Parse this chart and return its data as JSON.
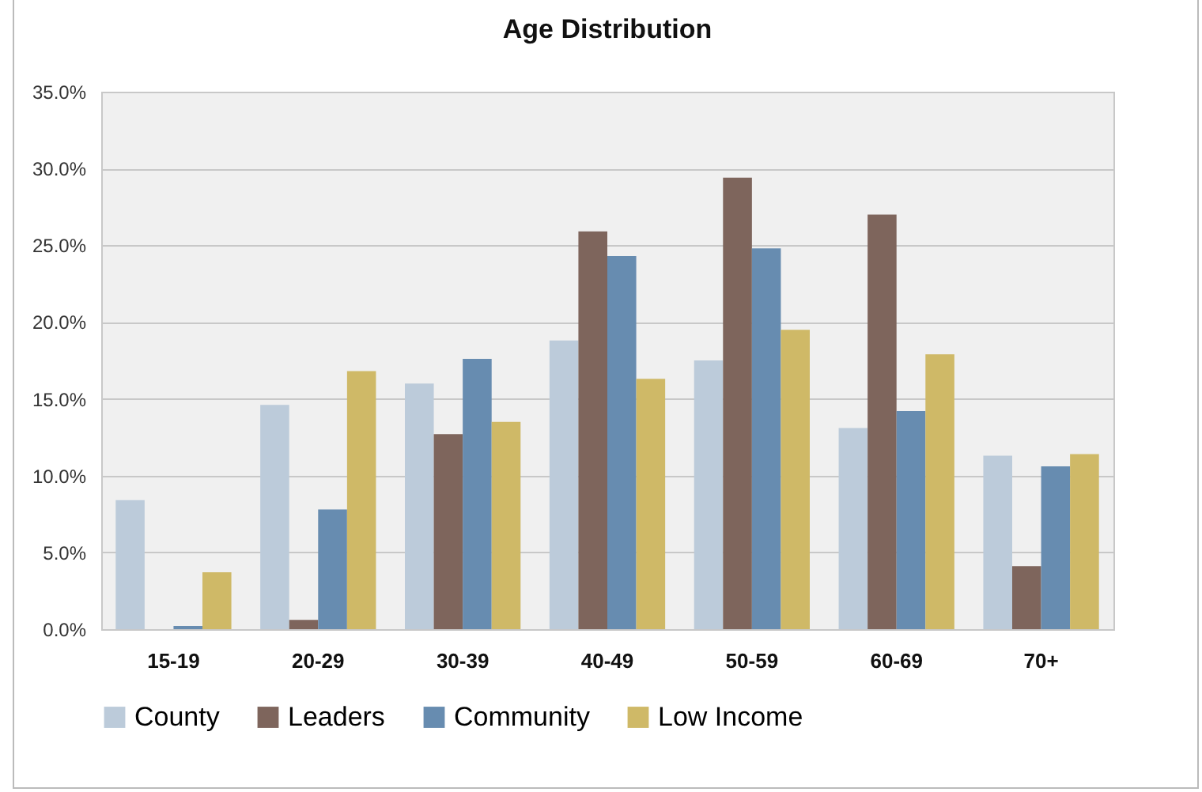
{
  "chart_data": {
    "type": "bar",
    "title": "Age Distribution",
    "categories": [
      "15-19",
      "20-29",
      "30-39",
      "40-49",
      "50-59",
      "60-69",
      "70+"
    ],
    "series": [
      {
        "name": "County",
        "color": "#bccbda",
        "values": [
          8.4,
          14.6,
          16.0,
          18.8,
          17.5,
          13.1,
          11.3
        ]
      },
      {
        "name": "Leaders",
        "color": "#7e655c",
        "values": [
          0,
          0.6,
          12.7,
          25.9,
          29.4,
          27.0,
          4.1
        ]
      },
      {
        "name": "Community",
        "color": "#678cb0",
        "values": [
          0.2,
          7.8,
          17.6,
          24.3,
          24.8,
          14.2,
          10.6
        ]
      },
      {
        "name": "Low Income",
        "color": "#cfb967",
        "values": [
          3.7,
          16.8,
          13.5,
          16.3,
          19.5,
          17.9,
          11.4
        ]
      }
    ],
    "ylim": [
      0,
      35
    ],
    "yticks": [
      {
        "value": 0,
        "label": "0.0%"
      },
      {
        "value": 5,
        "label": "5.0%"
      },
      {
        "value": 10,
        "label": "10.0%"
      },
      {
        "value": 15,
        "label": "15.0%"
      },
      {
        "value": 20,
        "label": "20.0%"
      },
      {
        "value": 25,
        "label": "25.0%"
      },
      {
        "value": 30,
        "label": "30.0%"
      },
      {
        "value": 35,
        "label": "35.0%"
      }
    ],
    "grid": "y",
    "legend": "bottom"
  }
}
